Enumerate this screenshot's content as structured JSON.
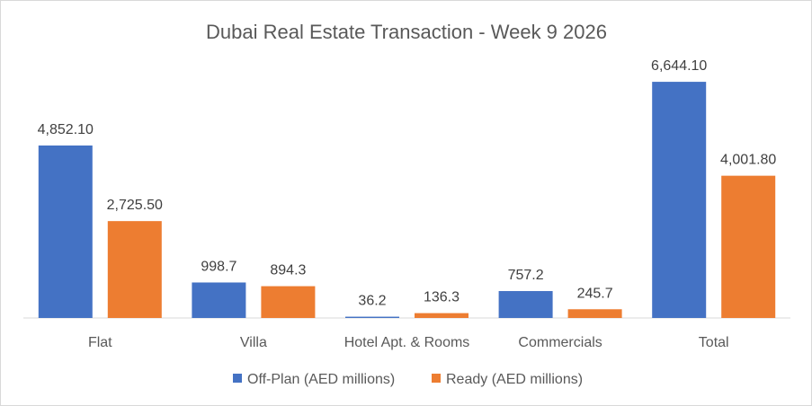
{
  "chart_data": {
    "type": "bar",
    "title": "Dubai Real Estate Transaction - Week 9 2026",
    "xlabel": "",
    "ylabel": "",
    "ylim": [
      0,
      7000
    ],
    "grid": false,
    "legend_position": "bottom",
    "categories": [
      "Flat",
      "Villa",
      "Hotel Apt. & Rooms",
      "Commercials",
      "Total"
    ],
    "series": [
      {
        "name": "Off-Plan (AED millions)",
        "color": "#4472C4",
        "values": [
          4852.1,
          998.7,
          36.2,
          757.2,
          6644.1
        ],
        "labels": [
          "4,852.10",
          "998.7",
          "36.2",
          "757.2",
          "6,644.10"
        ]
      },
      {
        "name": "Ready (AED millions)",
        "color": "#ED7D31",
        "values": [
          2725.5,
          894.3,
          136.3,
          245.7,
          4001.8
        ],
        "labels": [
          "2,725.50",
          "894.3",
          "136.3",
          "245.7",
          "4,001.80"
        ]
      }
    ]
  }
}
